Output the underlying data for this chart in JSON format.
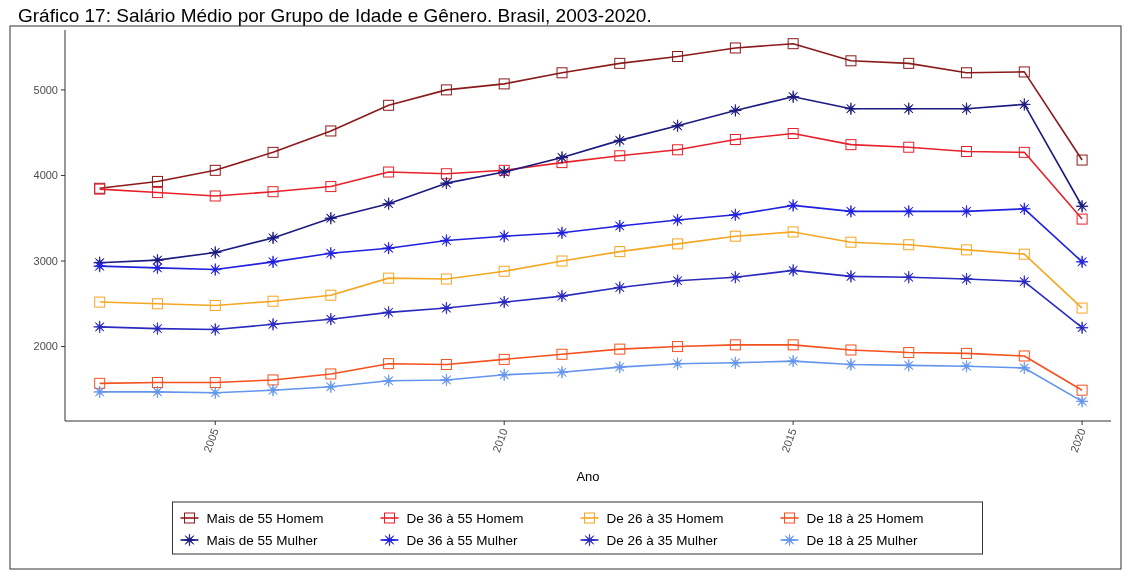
{
  "chart_data": {
    "type": "line",
    "title": "Gráfico 17: Salário Médio por Grupo de Idade e Gênero. Brasil, 2003-2020.",
    "xlabel": "Ano",
    "x": [
      2003,
      2004,
      2005,
      2006,
      2007,
      2008,
      2009,
      2010,
      2011,
      2012,
      2013,
      2014,
      2015,
      2016,
      2017,
      2018,
      2019,
      2020
    ],
    "xlim": [
      2002.4,
      2020.5
    ],
    "xticks": [
      2005,
      2010,
      2015,
      2020
    ],
    "ylim": [
      1130,
      5700
    ],
    "yticks": [
      2000,
      3000,
      4000,
      5000
    ],
    "grid": false,
    "legend": "bottom",
    "line_style": "solid",
    "series": [
      {
        "name": "Mais de 55 Homem",
        "color": "#8b1a1a",
        "marker": "square",
        "values": [
          3850,
          3930,
          4060,
          4270,
          4520,
          4820,
          5000,
          5070,
          5200,
          5310,
          5390,
          5490,
          5540,
          5340,
          5310,
          5200,
          5210,
          4180
        ]
      },
      {
        "name": "De 36 à 55 Homem",
        "color": "#e8202a",
        "marker": "square",
        "values": [
          3840,
          3800,
          3760,
          3810,
          3870,
          4040,
          4020,
          4060,
          4150,
          4230,
          4300,
          4420,
          4490,
          4360,
          4330,
          4280,
          4270,
          3490
        ]
      },
      {
        "name": "De 26 à 35 Homem",
        "color": "#f5a623",
        "marker": "square",
        "values": [
          2520,
          2500,
          2480,
          2530,
          2600,
          2800,
          2790,
          2880,
          3000,
          3110,
          3200,
          3290,
          3340,
          3220,
          3190,
          3130,
          3080,
          2450
        ]
      },
      {
        "name": "De 18 à 25 Homem",
        "color": "#f4511e",
        "marker": "square",
        "values": [
          1570,
          1580,
          1580,
          1610,
          1680,
          1800,
          1790,
          1850,
          1910,
          1970,
          2000,
          2020,
          2020,
          1960,
          1930,
          1920,
          1890,
          1490
        ]
      },
      {
        "name": "Mais de 55 Mulher",
        "color": "#1a1a80",
        "marker": "star",
        "values": [
          2980,
          3010,
          3100,
          3270,
          3500,
          3670,
          3910,
          4040,
          4210,
          4410,
          4580,
          4760,
          4920,
          4780,
          4780,
          4780,
          4830,
          3640
        ]
      },
      {
        "name": "De 36 à 55 Mulher",
        "color": "#2020e0",
        "marker": "star",
        "values": [
          2940,
          2920,
          2900,
          2990,
          3090,
          3150,
          3240,
          3290,
          3330,
          3410,
          3480,
          3540,
          3650,
          3580,
          3580,
          3580,
          3610,
          2990
        ]
      },
      {
        "name": "De 26 à 35 Mulher",
        "color": "#2a2ac0",
        "marker": "star",
        "values": [
          2230,
          2210,
          2200,
          2260,
          2320,
          2400,
          2450,
          2520,
          2590,
          2690,
          2770,
          2810,
          2890,
          2820,
          2810,
          2790,
          2760,
          2220
        ]
      },
      {
        "name": "De 18 à 25 Mulher",
        "color": "#6495ed",
        "marker": "star",
        "values": [
          1470,
          1470,
          1460,
          1490,
          1530,
          1600,
          1610,
          1670,
          1700,
          1760,
          1800,
          1810,
          1830,
          1790,
          1780,
          1770,
          1750,
          1360
        ]
      }
    ]
  }
}
